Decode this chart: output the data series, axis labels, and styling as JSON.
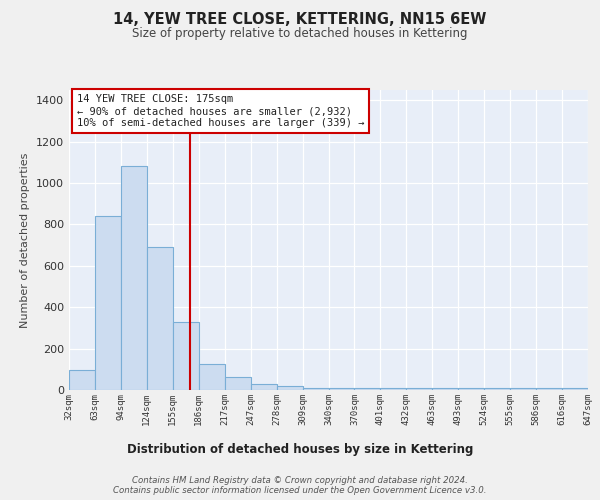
{
  "title": "14, YEW TREE CLOSE, KETTERING, NN15 6EW",
  "subtitle": "Size of property relative to detached houses in Kettering",
  "xlabel": "Distribution of detached houses by size in Kettering",
  "ylabel": "Number of detached properties",
  "categories": [
    "32sqm",
    "63sqm",
    "94sqm",
    "124sqm",
    "155sqm",
    "186sqm",
    "217sqm",
    "247sqm",
    "278sqm",
    "309sqm",
    "340sqm",
    "370sqm",
    "401sqm",
    "432sqm",
    "463sqm",
    "493sqm",
    "524sqm",
    "555sqm",
    "586sqm",
    "616sqm",
    "647sqm"
  ],
  "bar_heights": [
    97,
    840,
    1082,
    693,
    329,
    128,
    62,
    28,
    18,
    10,
    10,
    10,
    10,
    10,
    10,
    10,
    10,
    10,
    10,
    10
  ],
  "bar_color": "#ccdcf0",
  "bar_edge_color": "#7aaed6",
  "background_color": "#e8eef8",
  "grid_color": "#ffffff",
  "vline_color": "#cc0000",
  "vline_pos": 4.645,
  "annotation_text": "14 YEW TREE CLOSE: 175sqm\n← 90% of detached houses are smaller (2,932)\n10% of semi-detached houses are larger (339) →",
  "footer": "Contains HM Land Registry data © Crown copyright and database right 2024.\nContains public sector information licensed under the Open Government Licence v3.0.",
  "ylim": [
    0,
    1450
  ],
  "yticks": [
    0,
    200,
    400,
    600,
    800,
    1000,
    1200,
    1400
  ],
  "fig_bg": "#f0f0f0"
}
